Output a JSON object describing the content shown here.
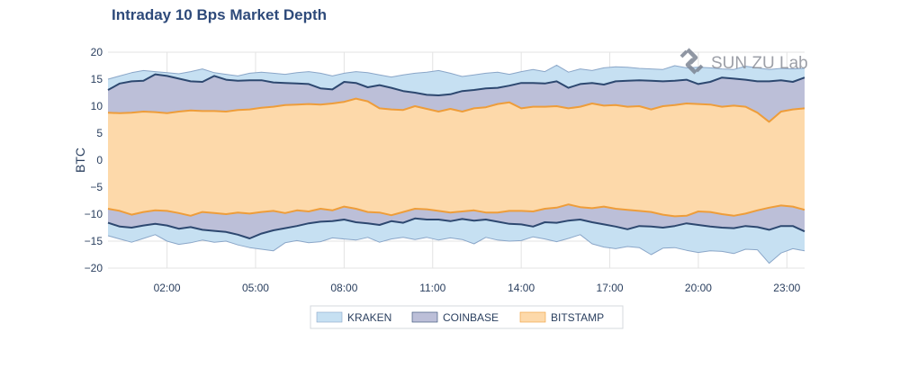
{
  "chart_data": {
    "type": "area",
    "title": "Intraday 10 Bps Market Depth",
    "xlabel": "",
    "ylabel": "BTC",
    "ylim": [
      -20,
      20
    ],
    "xlim": [
      0,
      23.6
    ],
    "yticks": [
      20,
      15,
      10,
      5,
      0,
      -5,
      -10,
      -15,
      -20
    ],
    "ytick_labels": [
      "20",
      "15",
      "10",
      "5",
      "0",
      "−5",
      "−10",
      "−15",
      "−20"
    ],
    "xticks": [
      2,
      5,
      8,
      11,
      14,
      17,
      20,
      23
    ],
    "xtick_labels": [
      "02:00",
      "05:00",
      "08:00",
      "11:00",
      "14:00",
      "17:00",
      "20:00",
      "23:00"
    ],
    "grid": true,
    "legend_position": "bottom",
    "watermark": "SUN ZU Lab",
    "colors": {
      "kraken_fill": "#c6e0f2",
      "coinbase_fill": "#bcbfd8",
      "bitstamp_fill": "#fdd9aa",
      "kraken_line": "#8aa6c8",
      "coinbase_line": "#2d4870",
      "bitstamp_line": "#ee9d3a",
      "grid": "#e3e3e3",
      "axis_text": "#2a3f5f",
      "title": "#2e4a7a"
    },
    "x": [
      0.0,
      0.4,
      0.8,
      1.2,
      1.6,
      2.0,
      2.4,
      2.8,
      3.2,
      3.6,
      4.0,
      4.4,
      4.8,
      5.2,
      5.6,
      6.0,
      6.4,
      6.8,
      7.2,
      7.6,
      8.0,
      8.4,
      8.8,
      9.2,
      9.6,
      10.0,
      10.4,
      10.8,
      11.2,
      11.6,
      12.0,
      12.4,
      12.8,
      13.2,
      13.6,
      14.0,
      14.4,
      14.8,
      15.2,
      15.6,
      16.0,
      16.4,
      16.8,
      17.2,
      17.6,
      18.0,
      18.4,
      18.8,
      19.2,
      19.6,
      20.0,
      20.4,
      20.8,
      21.2,
      21.6,
      22.0,
      22.4,
      22.8,
      23.2,
      23.6
    ],
    "series": [
      {
        "name": "KRAKEN",
        "bid": [
          15.0,
          15.6,
          16.2,
          16.6,
          16.4,
          16.2,
          16.0,
          16.4,
          16.9,
          16.2,
          15.9,
          15.6,
          16.1,
          16.3,
          16.1,
          15.9,
          16.2,
          16.4,
          16.1,
          15.6,
          16.1,
          16.4,
          16.2,
          15.8,
          15.4,
          15.8,
          16.1,
          16.3,
          16.6,
          16.1,
          15.5,
          15.8,
          16.1,
          16.3,
          15.9,
          16.4,
          16.8,
          16.4,
          17.6,
          16.3,
          16.9,
          16.6,
          17.1,
          17.3,
          17.2,
          17.0,
          16.9,
          16.8,
          17.5,
          17.1,
          17.2,
          17.1,
          16.9,
          16.8,
          17.4,
          17.1,
          16.8,
          17.0,
          16.9,
          17.0
        ],
        "ask": [
          -14.0,
          -14.6,
          -15.2,
          -14.5,
          -13.8,
          -15.0,
          -15.6,
          -15.3,
          -14.8,
          -15.2,
          -15.0,
          -15.7,
          -16.2,
          -16.5,
          -16.8,
          -15.3,
          -14.9,
          -15.3,
          -15.1,
          -14.4,
          -14.6,
          -14.8,
          -14.3,
          -15.2,
          -14.6,
          -14.3,
          -14.7,
          -14.3,
          -14.8,
          -14.4,
          -14.7,
          -15.5,
          -14.3,
          -14.8,
          -15.0,
          -14.9,
          -14.2,
          -14.6,
          -15.1,
          -14.5,
          -13.8,
          -15.5,
          -16.1,
          -16.4,
          -16.0,
          -16.2,
          -17.5,
          -16.3,
          -16.2,
          -16.7,
          -17.1,
          -16.8,
          -16.9,
          -17.3,
          -16.5,
          -16.6,
          -19.1,
          -17.2,
          -16.4,
          -16.8
        ]
      },
      {
        "name": "COINBASE",
        "bid": [
          13.0,
          14.2,
          14.6,
          14.7,
          15.9,
          15.6,
          15.1,
          14.6,
          14.5,
          15.6,
          14.9,
          14.7,
          14.8,
          14.8,
          14.4,
          14.3,
          14.2,
          14.1,
          13.3,
          13.1,
          14.5,
          14.3,
          13.5,
          13.9,
          13.4,
          12.8,
          12.5,
          12.1,
          12.0,
          12.2,
          12.8,
          13.0,
          13.3,
          13.4,
          13.8,
          14.3,
          14.3,
          14.2,
          14.6,
          13.4,
          14.1,
          14.3,
          14.0,
          14.6,
          14.7,
          14.8,
          14.7,
          14.6,
          14.7,
          14.9,
          14.1,
          14.5,
          15.3,
          15.1,
          14.9,
          14.6,
          14.6,
          14.8,
          14.5,
          15.3
        ],
        "ask": [
          -11.6,
          -12.3,
          -12.5,
          -12.1,
          -11.8,
          -12.1,
          -12.7,
          -12.4,
          -12.9,
          -13.1,
          -13.3,
          -13.8,
          -14.5,
          -13.6,
          -13.0,
          -12.6,
          -12.2,
          -11.7,
          -11.4,
          -11.3,
          -11.0,
          -11.5,
          -11.7,
          -12.0,
          -11.3,
          -11.6,
          -10.8,
          -11.0,
          -11.0,
          -11.3,
          -10.9,
          -11.2,
          -11.0,
          -11.4,
          -11.8,
          -11.9,
          -12.3,
          -11.5,
          -11.6,
          -11.2,
          -11.0,
          -11.5,
          -11.9,
          -12.3,
          -12.8,
          -12.2,
          -12.3,
          -12.5,
          -12.2,
          -11.7,
          -12.0,
          -12.3,
          -12.5,
          -12.6,
          -12.2,
          -12.4,
          -12.9,
          -12.2,
          -12.2,
          -13.2
        ]
      },
      {
        "name": "BITSTAMP",
        "bid": [
          8.8,
          8.7,
          8.8,
          9.0,
          8.9,
          8.7,
          9.0,
          9.2,
          9.1,
          9.1,
          9.0,
          9.3,
          9.4,
          9.7,
          9.9,
          10.2,
          10.3,
          10.4,
          10.3,
          10.5,
          10.8,
          11.4,
          10.9,
          9.6,
          9.4,
          9.3,
          10.0,
          9.5,
          9.0,
          9.5,
          9.0,
          9.6,
          9.8,
          10.4,
          10.7,
          9.6,
          9.9,
          9.9,
          10.0,
          9.6,
          9.9,
          10.5,
          10.1,
          10.2,
          9.9,
          10.0,
          9.4,
          10.0,
          10.2,
          10.5,
          10.4,
          10.3,
          9.9,
          10.1,
          9.9,
          8.8,
          7.1,
          9.0,
          9.4,
          9.6
        ],
        "ask": [
          -9.0,
          -9.4,
          -10.1,
          -9.6,
          -9.3,
          -9.4,
          -9.8,
          -10.3,
          -9.6,
          -9.8,
          -10.0,
          -9.7,
          -9.9,
          -9.6,
          -9.4,
          -9.8,
          -9.3,
          -9.5,
          -9.0,
          -9.3,
          -8.6,
          -9.0,
          -9.6,
          -9.7,
          -10.2,
          -9.6,
          -9.0,
          -9.1,
          -9.4,
          -9.7,
          -9.5,
          -9.3,
          -9.7,
          -9.7,
          -9.4,
          -9.4,
          -9.5,
          -9.0,
          -8.8,
          -8.2,
          -8.7,
          -8.9,
          -8.6,
          -9.0,
          -9.2,
          -9.4,
          -9.6,
          -10.1,
          -10.4,
          -10.3,
          -9.5,
          -9.6,
          -10.0,
          -10.3,
          -9.9,
          -9.3,
          -8.8,
          -8.4,
          -8.6,
          -9.2
        ]
      }
    ]
  }
}
